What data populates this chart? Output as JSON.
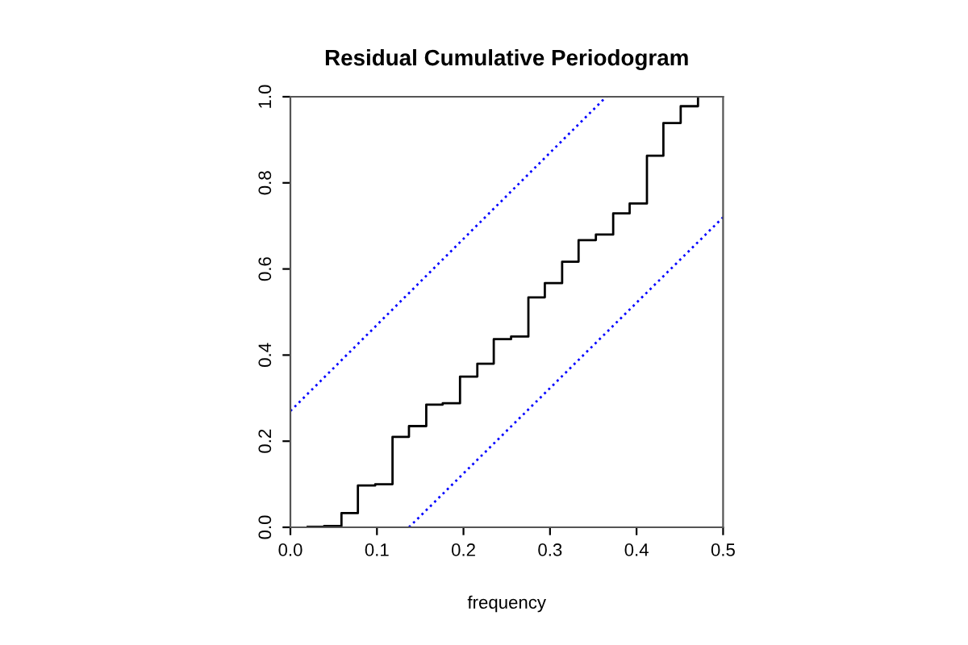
{
  "chart_data": {
    "type": "step",
    "title": "Residual Cumulative Periodogram",
    "xlabel": "frequency",
    "xlim": [
      0,
      0.5
    ],
    "ylim": [
      0,
      1
    ],
    "xticks": [
      {
        "value": 0,
        "label": "0.0"
      },
      0.1,
      0.2,
      0.3,
      0.4,
      0.5
    ],
    "yticks": [
      {
        "value": 0,
        "label": "0.0"
      },
      0.2,
      0.4,
      0.6,
      0.8,
      {
        "value": 1,
        "label": "1.0"
      }
    ],
    "grid": false,
    "legend": false,
    "series": [
      {
        "color": "#000000",
        "line_style": "solid",
        "x": [
          0.02,
          0.039,
          0.059,
          0.078,
          0.098,
          0.118,
          0.137,
          0.157,
          0.176,
          0.196,
          0.216,
          0.235,
          0.255,
          0.275,
          0.294,
          0.314,
          0.333,
          0.353,
          0.373,
          0.392,
          0.412,
          0.431,
          0.451,
          0.471
        ],
        "values": [
          0.001,
          0.003,
          0.033,
          0.097,
          0.1,
          0.21,
          0.235,
          0.285,
          0.288,
          0.35,
          0.38,
          0.437,
          0.443,
          0.534,
          0.567,
          0.617,
          0.667,
          0.68,
          0.729,
          0.752,
          0.863,
          0.939,
          0.978,
          1.0
        ]
      },
      {
        "type": "line",
        "color": "#0000ff",
        "line_style": "dotted",
        "x": [
          0,
          0.365
        ],
        "values": [
          0.27,
          1.0
        ]
      },
      {
        "type": "line",
        "color": "#0000ff",
        "line_style": "dotted",
        "x": [
          0.137,
          0.5
        ],
        "values": [
          0,
          0.72
        ]
      }
    ]
  }
}
